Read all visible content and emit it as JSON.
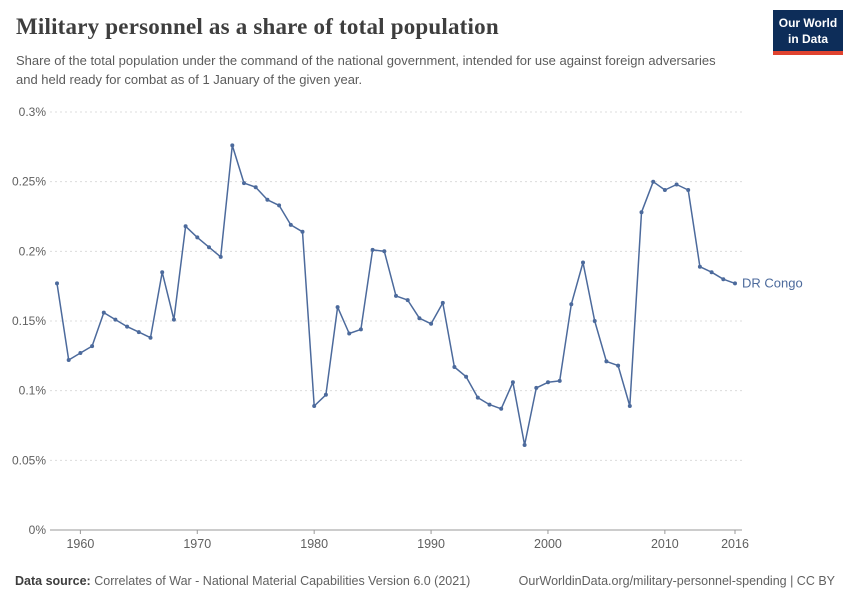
{
  "header": {
    "title": "Military personnel as a share of total population",
    "subtitle": "Share of the total population under the command of the national government, intended for use against foreign adversaries and held ready for combat as of 1 January of the given year.",
    "logo": {
      "line1": "Our World",
      "line2": "in Data"
    }
  },
  "chart_data": {
    "type": "line",
    "title": "Military personnel as a share of total population",
    "ylabel": "",
    "xlabel": "",
    "unit": "%",
    "grid": true,
    "ylim": [
      0,
      0.3
    ],
    "xlim": [
      1958,
      2016
    ],
    "x_ticks": [
      1960,
      1970,
      1980,
      1990,
      2000,
      2010,
      2016
    ],
    "y_ticks": [
      0,
      0.05,
      0.1,
      0.15,
      0.2,
      0.25,
      0.3
    ],
    "y_tick_labels": [
      "0%",
      "0.05%",
      "0.1%",
      "0.15%",
      "0.2%",
      "0.25%",
      "0.3%"
    ],
    "line_color": "#4C6A9C",
    "series": [
      {
        "name": "DR Congo",
        "x": [
          1958,
          1959,
          1960,
          1961,
          1962,
          1963,
          1964,
          1965,
          1966,
          1967,
          1968,
          1969,
          1970,
          1971,
          1972,
          1973,
          1974,
          1975,
          1976,
          1977,
          1978,
          1979,
          1980,
          1981,
          1982,
          1983,
          1984,
          1985,
          1986,
          1987,
          1988,
          1989,
          1990,
          1991,
          1992,
          1993,
          1994,
          1995,
          1996,
          1997,
          1998,
          1999,
          2000,
          2001,
          2002,
          2003,
          2004,
          2005,
          2006,
          2007,
          2008,
          2009,
          2010,
          2011,
          2012,
          2013,
          2014,
          2015,
          2016
        ],
        "values": [
          0.177,
          0.122,
          0.127,
          0.132,
          0.156,
          0.151,
          0.146,
          0.142,
          0.138,
          0.185,
          0.151,
          0.218,
          0.21,
          0.203,
          0.196,
          0.276,
          0.249,
          0.246,
          0.237,
          0.233,
          0.219,
          0.214,
          0.089,
          0.097,
          0.16,
          0.141,
          0.144,
          0.201,
          0.2,
          0.168,
          0.165,
          0.152,
          0.148,
          0.163,
          0.117,
          0.11,
          0.095,
          0.09,
          0.087,
          0.106,
          0.061,
          0.102,
          0.106,
          0.107,
          0.162,
          0.192,
          0.15,
          0.121,
          0.118,
          0.089,
          0.228,
          0.25,
          0.244,
          0.248,
          0.244,
          0.189,
          0.185,
          0.18,
          0.177
        ]
      }
    ]
  },
  "footer": {
    "datasource_label": "Data source:",
    "datasource_text": "Correlates of War - National Material Capabilities Version 6.0 (2021)",
    "link_text": "OurWorldinData.org/military-personnel-spending | CC BY"
  },
  "colors": {
    "line": "#4C6A9C",
    "logo_bg": "#0d2d59",
    "logo_accent": "#e0432f",
    "gridline": "#dcdcdc",
    "axis": "#999999",
    "tick_text": "#606060"
  }
}
